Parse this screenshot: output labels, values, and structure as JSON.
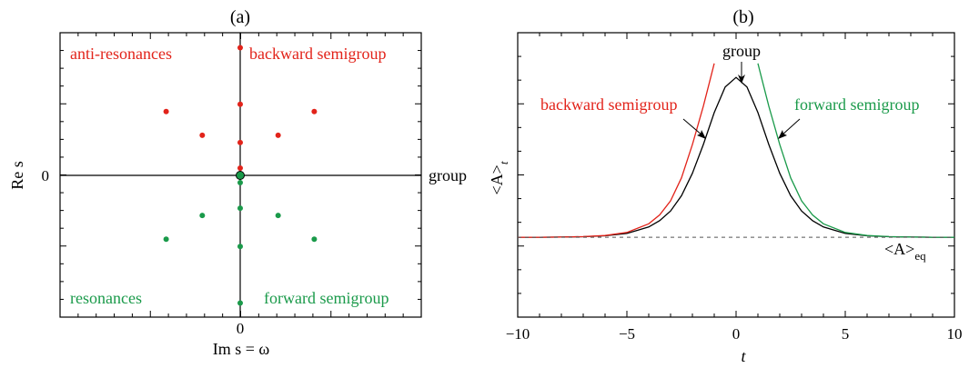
{
  "colors": {
    "red": "#e2231a",
    "green": "#1a9a4a",
    "axis": "#000000",
    "curve": "#000000",
    "dashed": "#555555"
  },
  "panel_a": {
    "label": "(a)",
    "xlabel": "Im s = ω",
    "ylabel": "Re s",
    "xtick": "0",
    "ytick": "0",
    "labels": {
      "anti_resonances": "anti-resonances",
      "backward": "backward semigroup",
      "resonances": "resonances",
      "forward": "forward semigroup",
      "group": "group"
    }
  },
  "panel_b": {
    "label": "(b)",
    "xlabel": "t",
    "ylabel": "<A>",
    "ylabel_sub": "t",
    "labels": {
      "group": "group",
      "backward": "backward semigroup",
      "forward": "forward semigroup",
      "eq": "<A>",
      "eq_sub": "eq"
    },
    "xticks": [
      "−10",
      "−5",
      "0",
      "5",
      "10"
    ]
  },
  "chart_data": [
    {
      "type": "scatter",
      "title": "(a)",
      "xlabel": "Im s = ω",
      "ylabel": "Re s",
      "xlim": [
        -5,
        5
      ],
      "ylim": [
        -3.9,
        3.9
      ],
      "series": [
        {
          "name": "anti-resonances",
          "color": "#e2231a",
          "points": [
            [
              0,
              3.5
            ],
            [
              0,
              1.95
            ],
            [
              0,
              0.9
            ],
            [
              0,
              0.2
            ],
            [
              -2.05,
              1.75
            ],
            [
              2.05,
              1.75
            ],
            [
              -1.05,
              1.1
            ],
            [
              1.05,
              1.1
            ]
          ]
        },
        {
          "name": "resonances",
          "color": "#1a9a4a",
          "points": [
            [
              0,
              -3.5
            ],
            [
              0,
              -1.95
            ],
            [
              0,
              -0.9
            ],
            [
              0,
              -0.2
            ],
            [
              -2.05,
              -1.75
            ],
            [
              2.05,
              -1.75
            ],
            [
              -1.05,
              -1.1
            ],
            [
              1.05,
              -1.1
            ]
          ]
        },
        {
          "name": "group",
          "color": "#1a9a4a",
          "points": [
            [
              0,
              0
            ]
          ]
        }
      ]
    },
    {
      "type": "line",
      "title": "(b)",
      "xlabel": "t",
      "ylabel": "<A>_t",
      "xlim": [
        -10,
        10
      ],
      "xticks": [
        -10,
        -5,
        0,
        5,
        10
      ],
      "ylim": [
        -1.25,
        3.2
      ],
      "series": [
        {
          "name": "group",
          "color": "#000000",
          "x": [
            -10,
            -9,
            -8,
            -7,
            -6,
            -5,
            -4,
            -3.5,
            -3,
            -2.5,
            -2,
            -1.5,
            -1,
            -0.5,
            0,
            0.5,
            1,
            1.5,
            2,
            2.5,
            3,
            3.5,
            4,
            5,
            6,
            7,
            8,
            9,
            10
          ],
          "y": [
            0.0,
            0.0,
            0.003,
            0.008,
            0.022,
            0.06,
            0.16,
            0.26,
            0.41,
            0.65,
            1.0,
            1.45,
            1.95,
            2.35,
            2.5,
            2.35,
            1.95,
            1.45,
            1.0,
            0.65,
            0.41,
            0.26,
            0.16,
            0.06,
            0.022,
            0.008,
            0.003,
            0.0,
            0.0
          ]
        },
        {
          "name": "backward semigroup",
          "color": "#e2231a",
          "x": [
            -10,
            -9,
            -8,
            -7,
            -6,
            -5,
            -4,
            -3.5,
            -3,
            -2.5,
            -2,
            -1.5,
            -1.2,
            -1.0
          ],
          "y": [
            0.0,
            0.0,
            0.003,
            0.009,
            0.026,
            0.075,
            0.21,
            0.35,
            0.57,
            0.93,
            1.45,
            2.05,
            2.45,
            2.72
          ]
        },
        {
          "name": "forward semigroup",
          "color": "#1a9a4a",
          "x": [
            1.0,
            1.2,
            1.5,
            2,
            2.5,
            3,
            3.5,
            4,
            5,
            6,
            7,
            8,
            9,
            10
          ],
          "y": [
            2.72,
            2.45,
            2.05,
            1.45,
            0.93,
            0.57,
            0.35,
            0.21,
            0.075,
            0.026,
            0.009,
            0.003,
            0.0,
            0.0
          ]
        },
        {
          "name": "<A>_eq",
          "style": "dashed",
          "color": "#555555",
          "x": [
            -10,
            10
          ],
          "y": [
            0,
            0
          ]
        }
      ]
    }
  ]
}
